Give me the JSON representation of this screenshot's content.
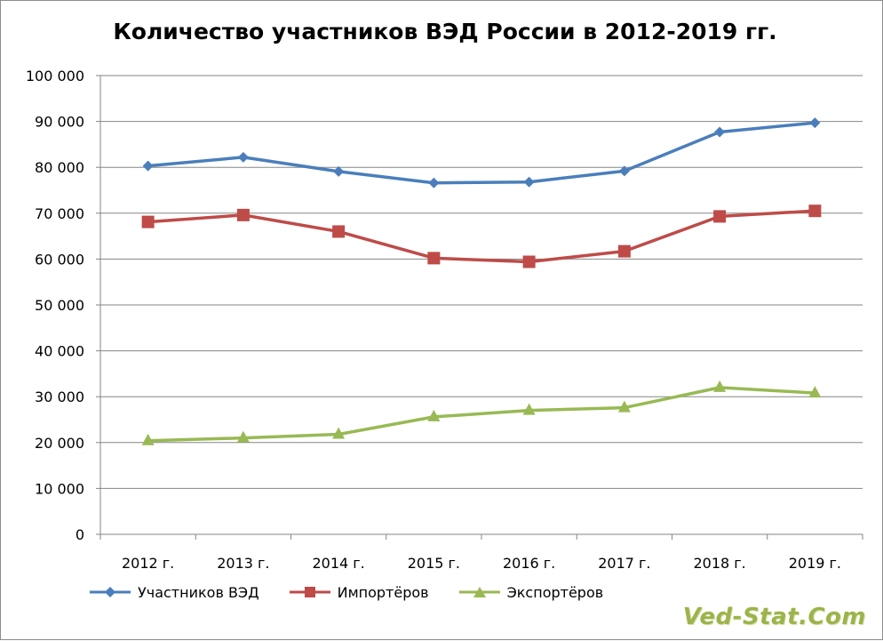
{
  "chart_data": {
    "type": "line",
    "title": "Количество участников ВЭД России в 2012-2019 гг.",
    "categories": [
      "2012 г.",
      "2013 г.",
      "2014 г.",
      "2015 г.",
      "2016 г.",
      "2017 г.",
      "2018 г.",
      "2019 г."
    ],
    "ylim": [
      0,
      100000
    ],
    "yticks": [
      0,
      10000,
      20000,
      30000,
      40000,
      50000,
      60000,
      70000,
      80000,
      90000,
      100000
    ],
    "ytick_labels": [
      "0",
      "10 000",
      "20 000",
      "30 000",
      "40 000",
      "50 000",
      "60 000",
      "70 000",
      "80 000",
      "90 000",
      "100 000"
    ],
    "grid": true,
    "legend_position": "bottom-left",
    "series": [
      {
        "name": "Участников ВЭД",
        "color": "#4a7ebb",
        "marker": "diamond",
        "values": [
          80300,
          82200,
          79100,
          76600,
          76800,
          79200,
          87700,
          89700
        ]
      },
      {
        "name": "Импортёров",
        "color": "#be4b48",
        "marker": "square",
        "values": [
          68100,
          69600,
          66000,
          60200,
          59400,
          61700,
          69300,
          70500
        ]
      },
      {
        "name": "Экспортёров",
        "color": "#98b954",
        "marker": "triangle",
        "values": [
          20400,
          21000,
          21800,
          25600,
          27000,
          27600,
          32000,
          30800
        ]
      }
    ]
  },
  "watermark": "Ved-Stat.Com"
}
